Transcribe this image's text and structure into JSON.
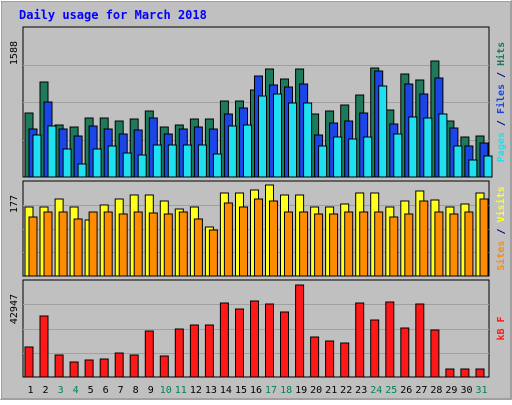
{
  "chart_data": {
    "type": "bar",
    "title": "Daily usage for March 2018",
    "days": [
      "1",
      "2",
      "3",
      "4",
      "5",
      "6",
      "7",
      "8",
      "9",
      "10",
      "11",
      "12",
      "13",
      "14",
      "15",
      "16",
      "17",
      "18",
      "19",
      "20",
      "21",
      "22",
      "23",
      "24",
      "25",
      "26",
      "27",
      "28",
      "29",
      "30",
      "31"
    ],
    "weekend_days": [
      3,
      4,
      10,
      11,
      17,
      18,
      24,
      25,
      31
    ],
    "panels": [
      {
        "id": "top",
        "max_label": "1588",
        "ymax": 1588,
        "series": [
          {
            "name": "Hits",
            "color": "#1e7a5a",
            "values": [
              700,
              1030,
              570,
              540,
              640,
              640,
              610,
              630,
              720,
              540,
              570,
              630,
              630,
              830,
              830,
              950,
              1170,
              1070,
              1170,
              690,
              720,
              780,
              890,
              1190,
              730,
              1120,
              1050,
              1260,
              610,
              430,
              450
            ]
          },
          {
            "name": "Files",
            "color": "#1b45e6",
            "values": [
              520,
              820,
              520,
              450,
              560,
              520,
              470,
              510,
              640,
              470,
              520,
              540,
              520,
              690,
              750,
              1100,
              1000,
              980,
              1010,
              460,
              590,
              610,
              700,
              1150,
              580,
              1010,
              900,
              1080,
              530,
              340,
              370
            ]
          },
          {
            "name": "Pages",
            "color": "#1ee0f0",
            "values": [
              460,
              560,
              300,
              140,
              300,
              340,
              260,
              240,
              350,
              350,
              350,
              350,
              250,
              550,
              570,
              880,
              900,
              810,
              810,
              340,
              430,
              410,
              430,
              990,
              470,
              650,
              640,
              690,
              340,
              180,
              230
            ]
          }
        ],
        "axis_label_parts": [
          {
            "text": "Pages",
            "color": "#1ee0f0"
          },
          {
            "text": " / ",
            "color": "#000080"
          },
          {
            "text": "Files",
            "color": "#1b45e6"
          },
          {
            "text": " / ",
            "color": "#000080"
          },
          {
            "text": "Hits",
            "color": "#1e7a5a"
          }
        ]
      },
      {
        "id": "mid",
        "max_label": "177",
        "ymax": 177,
        "series": [
          {
            "name": "Visits",
            "color": "#ffff20",
            "values": [
              135,
              135,
              150,
              135,
              108,
              138,
              150,
              157,
              157,
              145,
              130,
              135,
              95,
              162,
              162,
              168,
              177,
              158,
              158,
              135,
              135,
              140,
              162,
              162,
              135,
              145,
              165,
              148,
              135,
              140,
              162
            ]
          },
          {
            "name": "Sites",
            "color": "#ff8c00",
            "values": [
              115,
              125,
              125,
              110,
              125,
              125,
              120,
              125,
              122,
              120,
              125,
              110,
              90,
              142,
              135,
              150,
              145,
              125,
              125,
              120,
              120,
              125,
              125,
              125,
              115,
              120,
              145,
              125,
              120,
              125,
              150
            ]
          }
        ],
        "axis_label_parts": [
          {
            "text": "Sites",
            "color": "#ff8c00"
          },
          {
            "text": " / ",
            "color": "#000080"
          },
          {
            "text": "Visits",
            "color": "#ffff20"
          }
        ]
      },
      {
        "id": "bottom",
        "max_label": "42947",
        "ymax": 42947,
        "series": [
          {
            "name": "kB F",
            "color": "#ff1818",
            "values": [
              13900,
              28200,
              10300,
              6800,
              7800,
              8300,
              11300,
              10000,
              21100,
              9600,
              22000,
              24000,
              23800,
              34100,
              31500,
              35300,
              33600,
              29800,
              42500,
              18700,
              16800,
              15900,
              34000,
              26400,
              34500,
              22500,
              33900,
              21900,
              3700,
              3900,
              3700
            ]
          }
        ],
        "axis_label_parts": [
          {
            "text": "kB F",
            "color": "#ff1818"
          }
        ]
      }
    ]
  }
}
